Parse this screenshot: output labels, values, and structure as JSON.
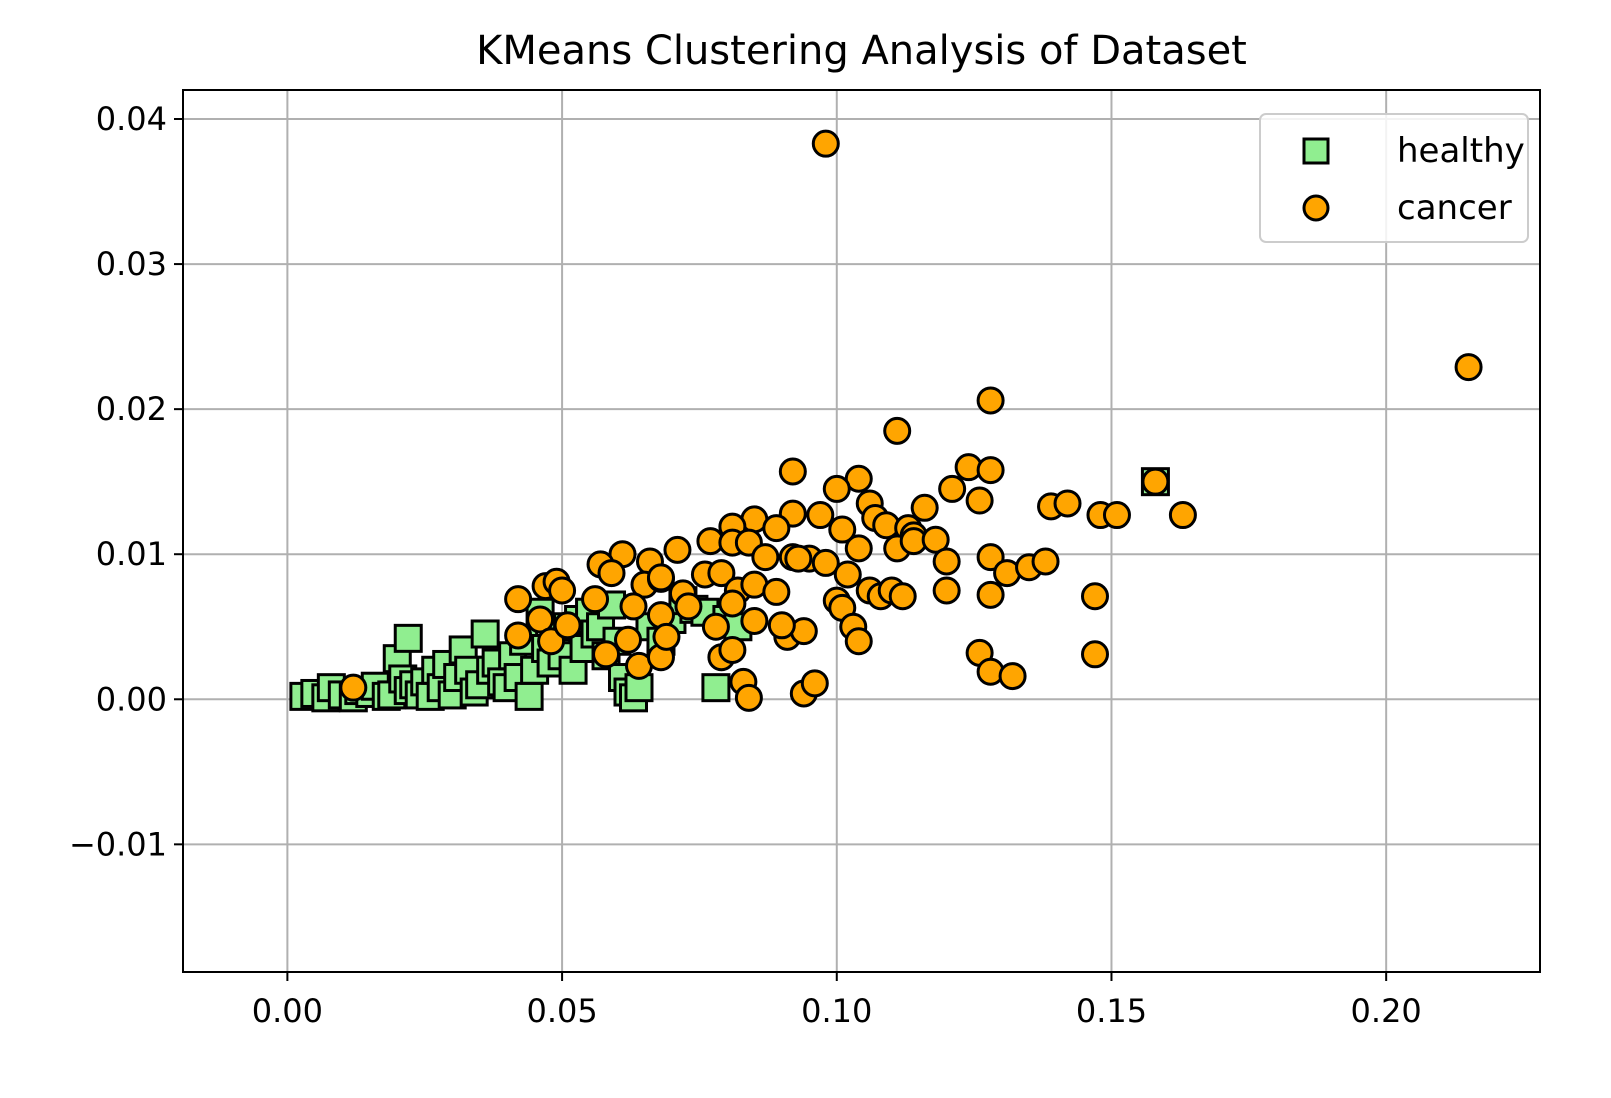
{
  "chart_data": {
    "type": "scatter",
    "title": "KMeans Clustering Analysis of Dataset",
    "xlabel": "",
    "ylabel": "",
    "xlim": [
      -0.019,
      0.228
    ],
    "ylim": [
      -0.0188,
      0.042
    ],
    "x_ticks": [
      0.0,
      0.05,
      0.1,
      0.15,
      0.2
    ],
    "x_tick_labels": [
      "0.00",
      "0.05",
      "0.10",
      "0.15",
      "0.20"
    ],
    "y_ticks": [
      -0.01,
      0.0,
      0.01,
      0.02,
      0.03,
      0.04
    ],
    "y_tick_labels": [
      "−0.01",
      "0.00",
      "0.01",
      "0.02",
      "0.03",
      "0.04"
    ],
    "grid": true,
    "legend_position": "top-right",
    "series": [
      {
        "name": "healthy",
        "marker": "square",
        "color": "#90ee90",
        "edge_color": "#000000",
        "points": [
          [
            0.003,
            0.0002
          ],
          [
            0.005,
            0.0004
          ],
          [
            0.007,
            0.0001
          ],
          [
            0.008,
            0.0008
          ],
          [
            0.01,
            0.0003
          ],
          [
            0.012,
            0.0001
          ],
          [
            0.013,
            0.0006
          ],
          [
            0.015,
            0.0004
          ],
          [
            0.016,
            0.0009
          ],
          [
            0.018,
            0.0002
          ],
          [
            0.019,
            0.0003
          ],
          [
            0.02,
            0.0028
          ],
          [
            0.021,
            0.0014
          ],
          [
            0.022,
            0.0006
          ],
          [
            0.022,
            0.0042
          ],
          [
            0.023,
            0.001
          ],
          [
            0.024,
            0.0003
          ],
          [
            0.025,
            0.0012
          ],
          [
            0.026,
            0.0002
          ],
          [
            0.027,
            0.002
          ],
          [
            0.028,
            0.0008
          ],
          [
            0.029,
            0.0024
          ],
          [
            0.03,
            0.0003
          ],
          [
            0.031,
            0.0015
          ],
          [
            0.032,
            0.0034
          ],
          [
            0.033,
            0.002
          ],
          [
            0.034,
            0.0005
          ],
          [
            0.035,
            0.001
          ],
          [
            0.036,
            0.0045
          ],
          [
            0.037,
            0.002
          ],
          [
            0.038,
            0.0025
          ],
          [
            0.039,
            0.0012
          ],
          [
            0.04,
            0.0008
          ],
          [
            0.041,
            0.003
          ],
          [
            0.042,
            0.0015
          ],
          [
            0.043,
            0.004
          ],
          [
            0.044,
            0.0002
          ],
          [
            0.045,
            0.002
          ],
          [
            0.046,
            0.006
          ],
          [
            0.047,
            0.0035
          ],
          [
            0.048,
            0.0025
          ],
          [
            0.049,
            0.0045
          ],
          [
            0.05,
            0.003
          ],
          [
            0.051,
            0.005
          ],
          [
            0.052,
            0.002
          ],
          [
            0.053,
            0.0055
          ],
          [
            0.054,
            0.0035
          ],
          [
            0.055,
            0.006
          ],
          [
            0.056,
            0.0045
          ],
          [
            0.057,
            0.005
          ],
          [
            0.058,
            0.003
          ],
          [
            0.059,
            0.0065
          ],
          [
            0.06,
            0.004
          ],
          [
            0.061,
            0.0015
          ],
          [
            0.062,
            0.0005
          ],
          [
            0.063,
            0.0001
          ],
          [
            0.064,
            0.0008
          ],
          [
            0.066,
            0.005
          ],
          [
            0.068,
            0.004
          ],
          [
            0.07,
            0.0055
          ],
          [
            0.072,
            0.0068
          ],
          [
            0.074,
            0.0062
          ],
          [
            0.076,
            0.006
          ],
          [
            0.078,
            0.0008
          ],
          [
            0.08,
            0.0055
          ],
          [
            0.082,
            0.005
          ],
          [
            0.158,
            0.015
          ]
        ]
      },
      {
        "name": "cancer",
        "marker": "circle",
        "color": "#ffa500",
        "edge_color": "#000000",
        "points": [
          [
            0.098,
            0.0383
          ],
          [
            0.215,
            0.0229
          ],
          [
            0.128,
            0.0206
          ],
          [
            0.111,
            0.0185
          ],
          [
            0.092,
            0.0157
          ],
          [
            0.104,
            0.0152
          ],
          [
            0.124,
            0.016
          ],
          [
            0.128,
            0.0158
          ],
          [
            0.158,
            0.015
          ],
          [
            0.121,
            0.0145
          ],
          [
            0.1,
            0.0145
          ],
          [
            0.106,
            0.0135
          ],
          [
            0.126,
            0.0137
          ],
          [
            0.139,
            0.0133
          ],
          [
            0.142,
            0.0135
          ],
          [
            0.148,
            0.0127
          ],
          [
            0.151,
            0.0127
          ],
          [
            0.163,
            0.0127
          ],
          [
            0.116,
            0.0132
          ],
          [
            0.097,
            0.0127
          ],
          [
            0.092,
            0.0128
          ],
          [
            0.085,
            0.0124
          ],
          [
            0.107,
            0.0125
          ],
          [
            0.081,
            0.0119
          ],
          [
            0.089,
            0.0118
          ],
          [
            0.101,
            0.0117
          ],
          [
            0.109,
            0.012
          ],
          [
            0.113,
            0.0118
          ],
          [
            0.114,
            0.0113
          ],
          [
            0.077,
            0.0109
          ],
          [
            0.081,
            0.0108
          ],
          [
            0.084,
            0.0108
          ],
          [
            0.104,
            0.0104
          ],
          [
            0.111,
            0.0104
          ],
          [
            0.114,
            0.0109
          ],
          [
            0.118,
            0.011
          ],
          [
            0.061,
            0.01
          ],
          [
            0.066,
            0.0095
          ],
          [
            0.071,
            0.0103
          ],
          [
            0.087,
            0.0098
          ],
          [
            0.092,
            0.0098
          ],
          [
            0.095,
            0.0097
          ],
          [
            0.098,
            0.0094
          ],
          [
            0.102,
            0.0086
          ],
          [
            0.106,
            0.0075
          ],
          [
            0.108,
            0.0071
          ],
          [
            0.11,
            0.0075
          ],
          [
            0.112,
            0.0071
          ],
          [
            0.12,
            0.0095
          ],
          [
            0.12,
            0.0075
          ],
          [
            0.128,
            0.0098
          ],
          [
            0.128,
            0.0072
          ],
          [
            0.131,
            0.0087
          ],
          [
            0.135,
            0.0091
          ],
          [
            0.138,
            0.0095
          ],
          [
            0.057,
            0.0093
          ],
          [
            0.059,
            0.0087
          ],
          [
            0.065,
            0.0079
          ],
          [
            0.068,
            0.0083
          ],
          [
            0.072,
            0.0073
          ],
          [
            0.073,
            0.0064
          ],
          [
            0.076,
            0.0086
          ],
          [
            0.079,
            0.0087
          ],
          [
            0.082,
            0.0075
          ],
          [
            0.085,
            0.0079
          ],
          [
            0.089,
            0.0074
          ],
          [
            0.093,
            0.0097
          ],
          [
            0.1,
            0.0068
          ],
          [
            0.101,
            0.0063
          ],
          [
            0.103,
            0.005
          ],
          [
            0.104,
            0.004
          ],
          [
            0.091,
            0.0043
          ],
          [
            0.094,
            0.0047
          ],
          [
            0.09,
            0.0051
          ],
          [
            0.085,
            0.0054
          ],
          [
            0.081,
            0.0066
          ],
          [
            0.078,
            0.005
          ],
          [
            0.079,
            0.0029
          ],
          [
            0.081,
            0.0034
          ],
          [
            0.083,
            0.0012
          ],
          [
            0.084,
            0.0001
          ],
          [
            0.094,
            0.0004
          ],
          [
            0.096,
            0.0011
          ],
          [
            0.126,
            0.0032
          ],
          [
            0.128,
            0.0019
          ],
          [
            0.132,
            0.0016
          ],
          [
            0.147,
            0.0071
          ],
          [
            0.147,
            0.0031
          ],
          [
            0.047,
            0.0078
          ],
          [
            0.049,
            0.0081
          ],
          [
            0.05,
            0.0075
          ],
          [
            0.042,
            0.0069
          ],
          [
            0.046,
            0.0055
          ],
          [
            0.042,
            0.0044
          ],
          [
            0.048,
            0.004
          ],
          [
            0.051,
            0.0051
          ],
          [
            0.056,
            0.0069
          ],
          [
            0.058,
            0.0031
          ],
          [
            0.062,
            0.0041
          ],
          [
            0.063,
            0.0064
          ],
          [
            0.064,
            0.0023
          ],
          [
            0.068,
            0.0029
          ],
          [
            0.068,
            0.0058
          ],
          [
            0.069,
            0.0043
          ],
          [
            0.068,
            0.0084
          ],
          [
            0.012,
            0.0008
          ]
        ]
      }
    ]
  }
}
